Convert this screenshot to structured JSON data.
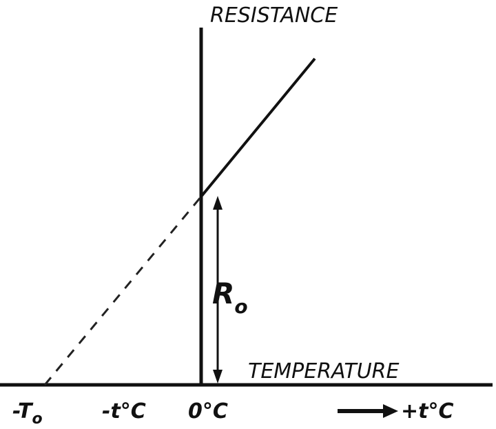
{
  "axes": {
    "vertical_label": "RESISTANCE",
    "horizontal_label": "TEMPERATURE"
  },
  "annotation": {
    "main": "R",
    "subscript": "o"
  },
  "x_labels": [
    {
      "main": "-T",
      "subscript": "o"
    },
    {
      "main": "-t°C"
    },
    {
      "main": "0°C"
    },
    {
      "main": "+t°C"
    }
  ]
}
